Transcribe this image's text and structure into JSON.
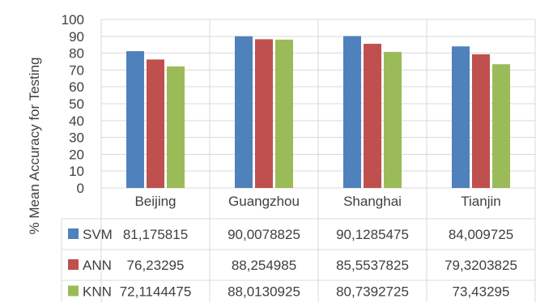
{
  "chart_data": {
    "type": "bar",
    "ylabel": "% Mean Accuracy for Testing",
    "ylim": [
      0,
      100
    ],
    "yticks": [
      0,
      10,
      20,
      30,
      40,
      50,
      60,
      70,
      80,
      90,
      100
    ],
    "y_tick_labels": [
      "0",
      "10",
      "20",
      "30",
      "40",
      "50",
      "60",
      "70",
      "80",
      "90",
      "100"
    ],
    "grid": true,
    "legend_placement": "data-table",
    "categories": [
      "Beijing",
      "Guangzhou",
      "Shanghai",
      "Tianjin"
    ],
    "series": [
      {
        "name": "SVM",
        "color": "#4f81bd",
        "values": [
          81.175815,
          90.0078825,
          90.1285475,
          84.009725
        ],
        "labels": [
          "81,175815",
          "90,0078825",
          "90,1285475",
          "84,009725"
        ]
      },
      {
        "name": "ANN",
        "color": "#c0504d",
        "values": [
          76.23295,
          88.254985,
          85.5537825,
          79.3203825
        ],
        "labels": [
          "76,23295",
          "88,254985",
          "85,5537825",
          "79,3203825"
        ]
      },
      {
        "name": "KNN",
        "color": "#9bbb59",
        "values": [
          72.1144475,
          88.0130925,
          80.7392725,
          73.43295
        ],
        "labels": [
          "72,1144475",
          "88,0130925",
          "80,7392725",
          "73,43295"
        ]
      }
    ]
  }
}
